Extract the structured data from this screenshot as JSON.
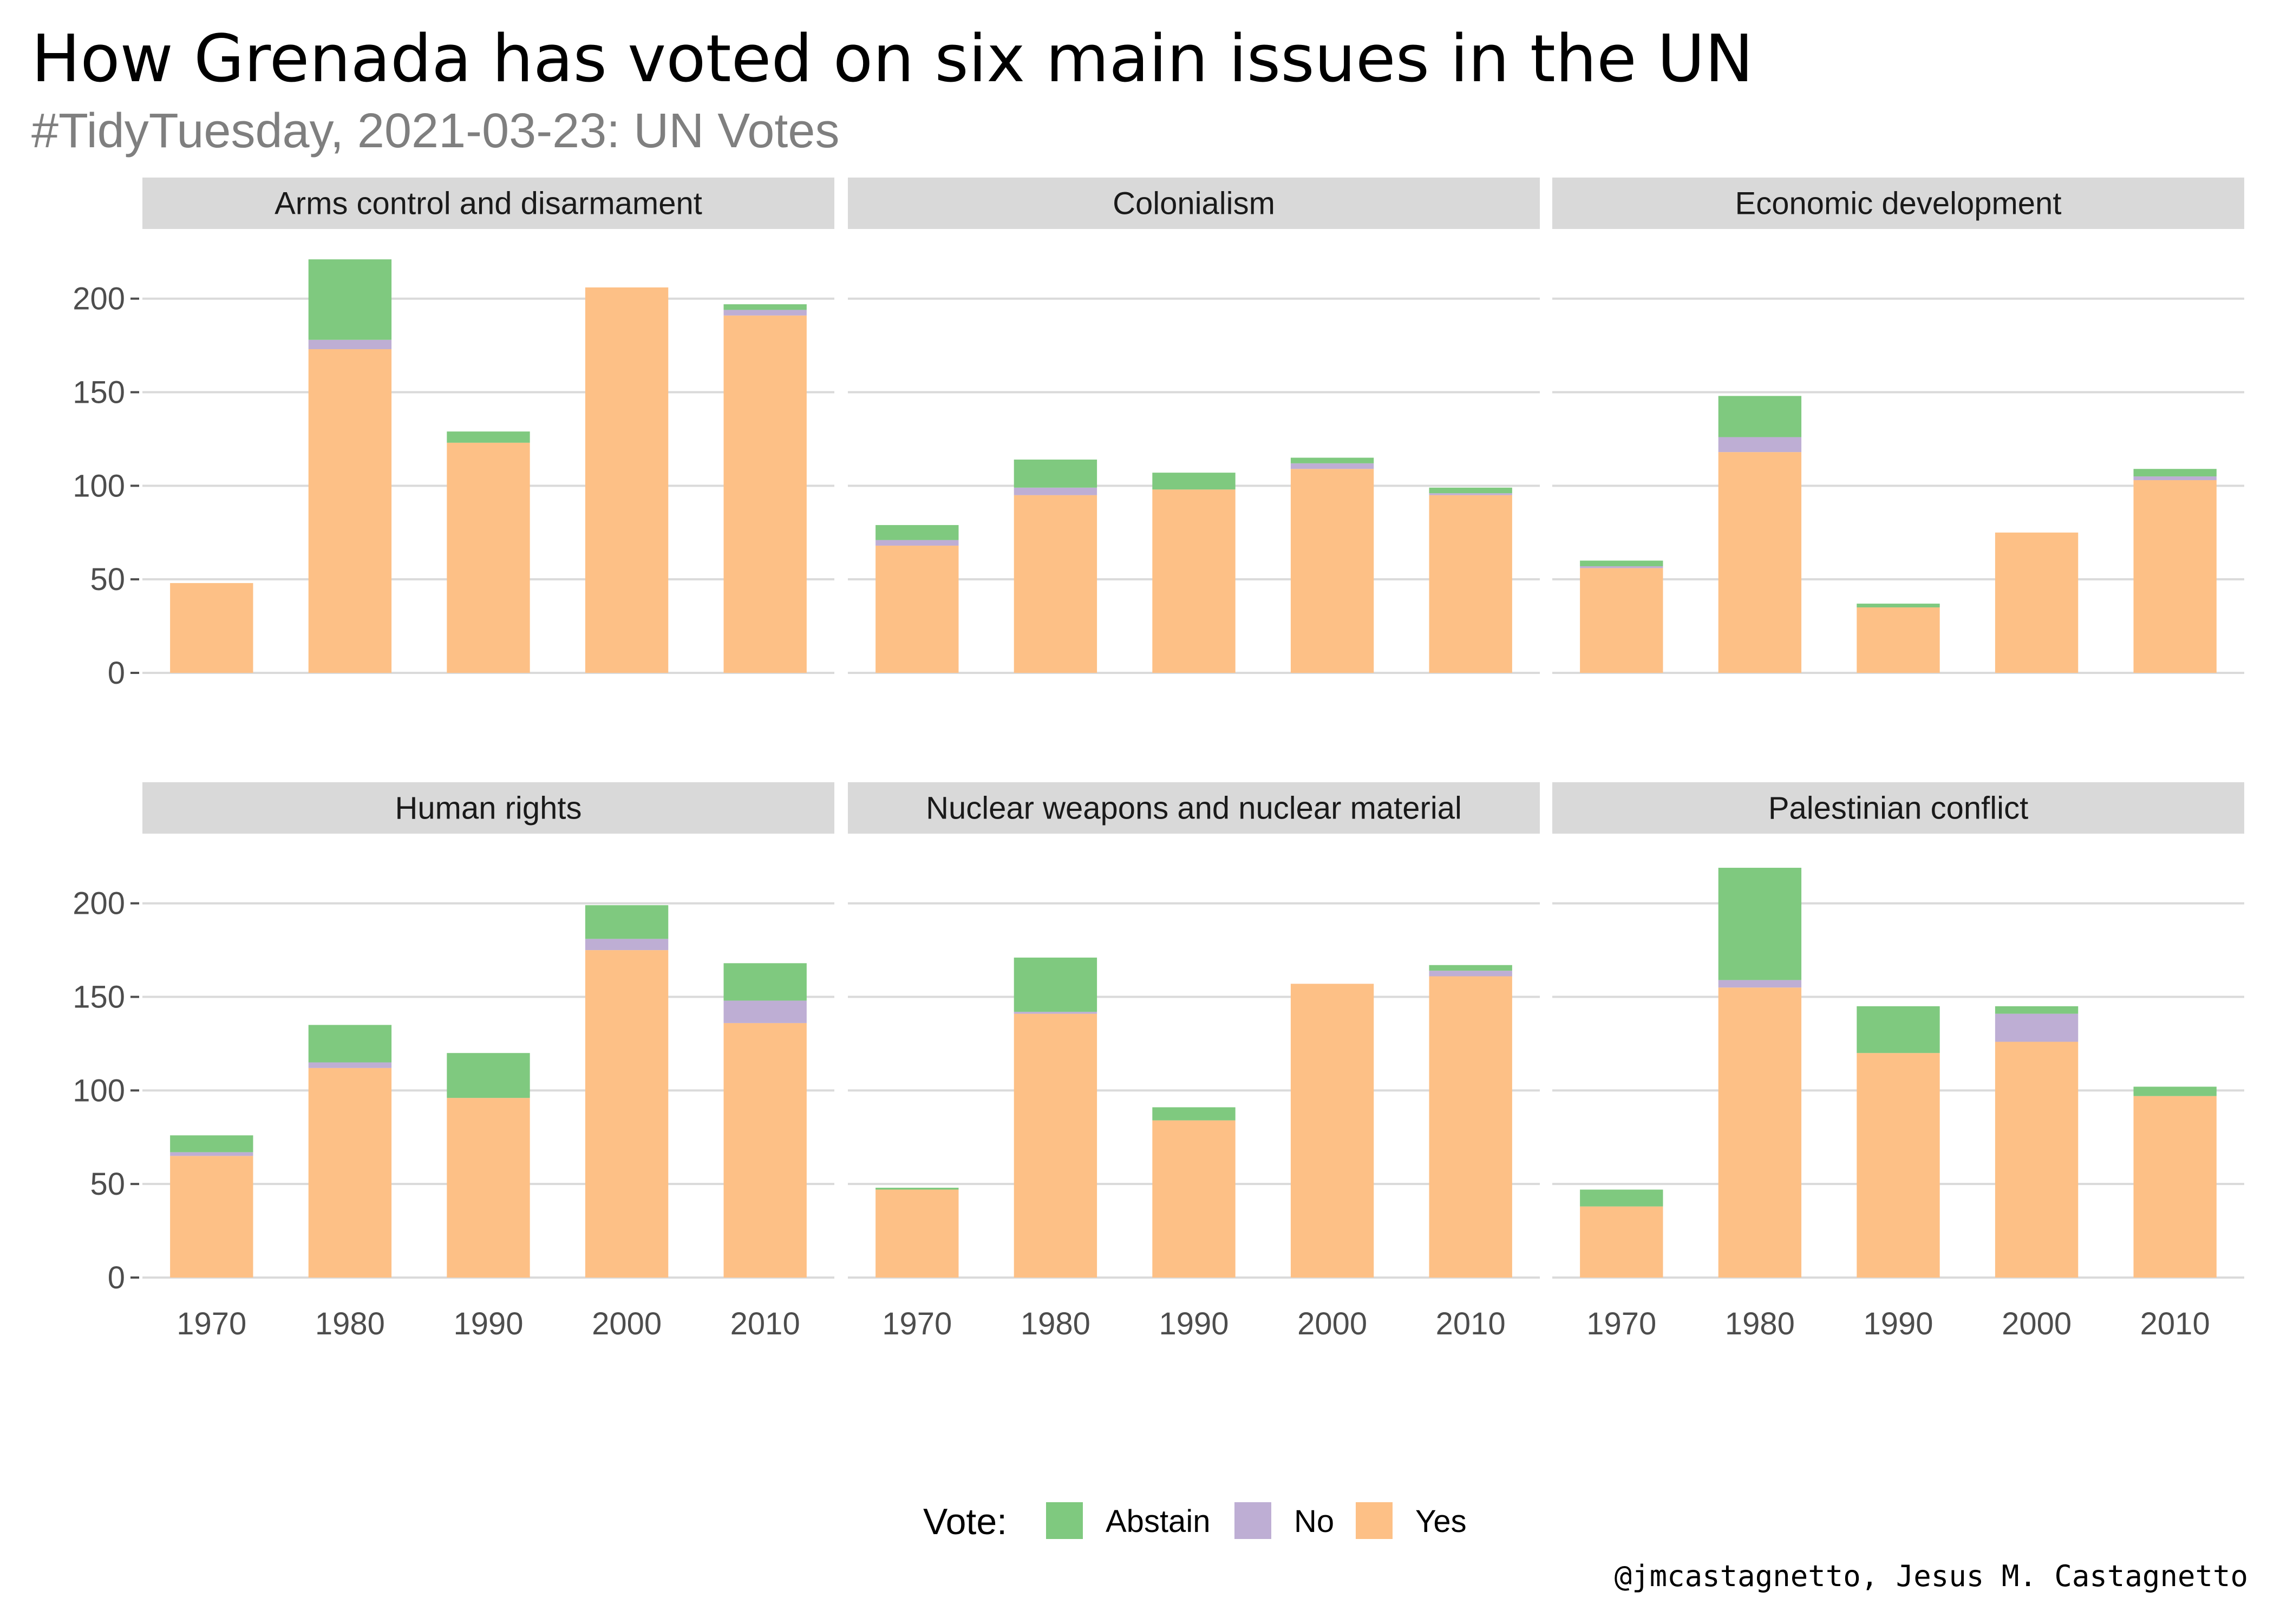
{
  "title": "How Grenada has voted on six main issues in the UN",
  "subtitle": "#TidyTuesday, 2021-03-23: UN Votes",
  "caption": "@jmcastagnetto, Jesus M. Castagnetto",
  "legend": {
    "title": "Vote:",
    "position": "bottom",
    "items": [
      {
        "label": "Abstain",
        "color": "#7fc97f"
      },
      {
        "label": "No",
        "color": "#beaed4"
      },
      {
        "label": "Yes",
        "color": "#fdc086"
      }
    ]
  },
  "chart_data": {
    "type": "bar",
    "stacked": true,
    "facet_layout": {
      "rows": 2,
      "cols": 3
    },
    "categories": [
      "1970",
      "1980",
      "1990",
      "2000",
      "2010"
    ],
    "yticks": [
      0,
      50,
      100,
      150,
      200
    ],
    "ylim": [
      0,
      230
    ],
    "grid": true,
    "series_names": [
      "Yes",
      "No",
      "Abstain"
    ],
    "series_colors": {
      "Yes": "#fdc086",
      "No": "#beaed4",
      "Abstain": "#7fc97f"
    },
    "facets": [
      {
        "name": "Arms control and disarmament",
        "series": [
          {
            "name": "Yes",
            "values": [
              48,
              173,
              123,
              206,
              191
            ]
          },
          {
            "name": "No",
            "values": [
              0,
              5,
              0,
              0,
              3
            ]
          },
          {
            "name": "Abstain",
            "values": [
              0,
              43,
              6,
              0,
              3
            ]
          }
        ]
      },
      {
        "name": "Colonialism",
        "series": [
          {
            "name": "Yes",
            "values": [
              68,
              95,
              98,
              109,
              95
            ]
          },
          {
            "name": "No",
            "values": [
              3,
              4,
              0,
              3,
              1
            ]
          },
          {
            "name": "Abstain",
            "values": [
              8,
              15,
              9,
              3,
              3
            ]
          }
        ]
      },
      {
        "name": "Economic development",
        "series": [
          {
            "name": "Yes",
            "values": [
              56,
              118,
              35,
              75,
              103
            ]
          },
          {
            "name": "No",
            "values": [
              1,
              8,
              0,
              0,
              2
            ]
          },
          {
            "name": "Abstain",
            "values": [
              3,
              22,
              2,
              0,
              4
            ]
          }
        ]
      },
      {
        "name": "Human rights",
        "series": [
          {
            "name": "Yes",
            "values": [
              65,
              112,
              96,
              175,
              136
            ]
          },
          {
            "name": "No",
            "values": [
              2,
              3,
              0,
              6,
              12
            ]
          },
          {
            "name": "Abstain",
            "values": [
              9,
              20,
              24,
              18,
              20
            ]
          }
        ]
      },
      {
        "name": "Nuclear weapons and nuclear material",
        "series": [
          {
            "name": "Yes",
            "values": [
              47,
              141,
              84,
              157,
              161
            ]
          },
          {
            "name": "No",
            "values": [
              0,
              1,
              0,
              0,
              3
            ]
          },
          {
            "name": "Abstain",
            "values": [
              1,
              29,
              7,
              0,
              3
            ]
          }
        ]
      },
      {
        "name": "Palestinian conflict",
        "series": [
          {
            "name": "Yes",
            "values": [
              38,
              155,
              120,
              126,
              97
            ]
          },
          {
            "name": "No",
            "values": [
              0,
              4,
              0,
              15,
              0
            ]
          },
          {
            "name": "Abstain",
            "values": [
              9,
              60,
              25,
              4,
              5
            ]
          }
        ]
      }
    ]
  }
}
